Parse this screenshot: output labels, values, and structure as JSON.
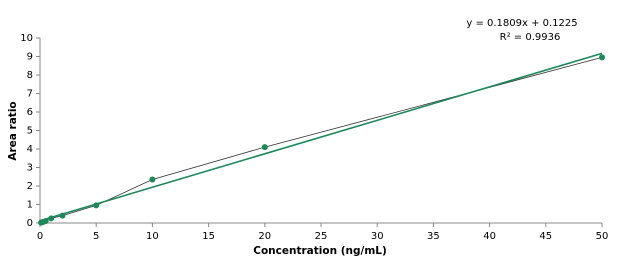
{
  "chart_data": {
    "type": "scatter",
    "x_label": "Concentration (ng/mL)",
    "y_label": "Area ratio",
    "annotations": [
      "y = 0.1809x + 0.1225",
      "R² = 0.9936"
    ],
    "series": [
      {
        "x": [
          0.1,
          0.25,
          0.5,
          1,
          2,
          5,
          10,
          20,
          50
        ],
        "values": [
          0.02,
          0.05,
          0.1,
          0.25,
          0.4,
          0.95,
          2.35,
          4.1,
          8.95
        ],
        "color": "#1a8a5a",
        "line_color": "#333333"
      }
    ],
    "trendline": {
      "x": [
        0,
        50
      ],
      "values": [
        0.1225,
        9.1675
      ],
      "color": "#1a8a5a"
    },
    "xlim": [
      0,
      50
    ],
    "xticks": [
      0,
      5,
      10,
      15,
      20,
      25,
      30,
      35,
      40,
      45,
      50
    ],
    "ylim": [
      0,
      10
    ],
    "yticks": [
      0,
      1,
      2,
      3,
      4,
      5,
      6,
      7,
      8,
      9,
      10
    ],
    "grid": false
  }
}
